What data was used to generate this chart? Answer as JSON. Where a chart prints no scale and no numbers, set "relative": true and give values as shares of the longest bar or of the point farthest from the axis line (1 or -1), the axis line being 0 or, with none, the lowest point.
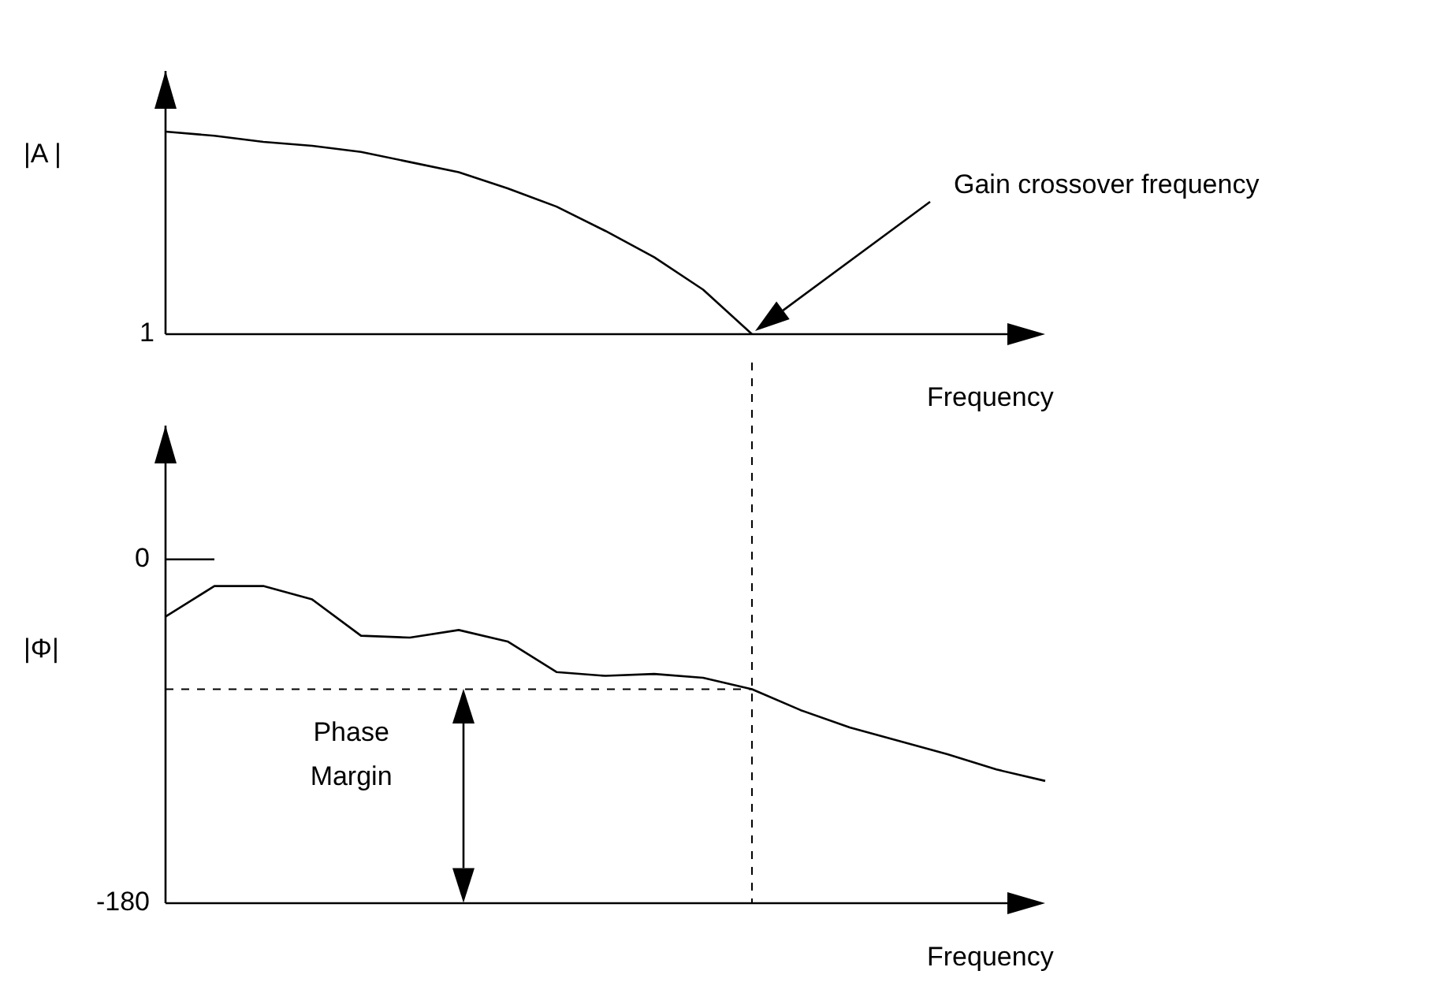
{
  "chart_data": [
    {
      "type": "line",
      "ylabel": "|A |",
      "xlabel": "Frequency",
      "relative": true,
      "categories": [
        null,
        null,
        null,
        null,
        null,
        null,
        null,
        null,
        null,
        null,
        null,
        null,
        null,
        null,
        null,
        null,
        null,
        null,
        null
      ],
      "series": [
        {
          "color": "#000000",
          "values": [
            1,
            0.98,
            0.95,
            0.93,
            0.9,
            0.85,
            0.8,
            0.72,
            0.63,
            0.51,
            0.38,
            0.22,
            0,
            null,
            null,
            null,
            null,
            null,
            null
          ]
        }
      ],
      "annotations": [
        "1",
        "Gain crossover frequency"
      ],
      "grid": false,
      "legend": false,
      "tick_labels": false,
      "marker": "none",
      "line_style": "solid"
    },
    {
      "type": "line",
      "ylabel": "|Φ|",
      "xlabel": "Frequency",
      "categories": [
        null,
        null,
        null,
        null,
        null,
        null,
        null,
        null,
        null,
        null,
        null,
        null,
        null,
        null,
        null,
        null,
        null,
        null,
        null
      ],
      "series": [
        {
          "color": "#000000",
          "values": [
            0,
            0,
            null,
            null,
            null,
            null,
            null,
            null,
            null,
            null,
            null,
            null,
            null,
            null,
            null,
            null,
            null,
            null,
            null
          ]
        },
        {
          "color": "#000000",
          "values": [
            -30,
            -14,
            -14,
            -21,
            -40,
            -41,
            -37,
            -43,
            -59,
            -61,
            -60,
            -62,
            -68,
            -79,
            -88,
            -95,
            -102,
            -110,
            -116
          ]
        }
      ],
      "ylim": [
        -180,
        70
      ],
      "yticks": [
        -180,
        0
      ],
      "ref_lines": [
        {
          "axis": "y",
          "value": -68,
          "line_style": "dashed",
          "color": "#000000"
        }
      ],
      "annotations": [
        "Phase Margin"
      ],
      "grid": false,
      "legend": false,
      "tick_labels": "y",
      "marker": "none",
      "line_style": "solid"
    }
  ]
}
